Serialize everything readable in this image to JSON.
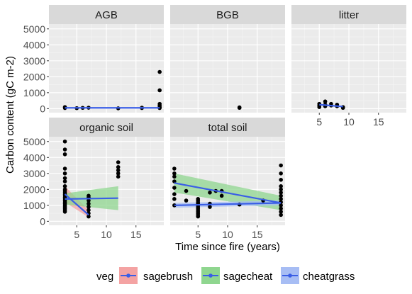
{
  "chart_data": {
    "type": "scatter",
    "xlabel": "Time since fire (years)",
    "ylabel": "Carbon content (gC m-2)",
    "xlim": [
      0.3,
      19.7
    ],
    "ylim": [
      -250,
      5300
    ],
    "x_ticks": [
      5,
      10,
      15
    ],
    "y_ticks": [
      0,
      1000,
      2000,
      3000,
      4000,
      5000
    ],
    "grid": true,
    "legend": {
      "title": "veg",
      "position": "bottom",
      "entries": [
        {
          "name": "sagebrush",
          "fill": "#f4a3a3",
          "color": "#e8696b"
        },
        {
          "name": "sagecheat",
          "fill": "#8fd68f",
          "color": "#4cae4c"
        },
        {
          "name": "cheatgrass",
          "fill": "#a7bdf4",
          "color": "#3a5ee6"
        }
      ]
    },
    "colors": {
      "panel_bg": "#ebebeb",
      "strip_bg": "#d9d9d9",
      "point": "#000000",
      "line": "#3a5ee6"
    },
    "panels": [
      {
        "title": "AGB",
        "x_axis": false,
        "y_axis": true,
        "points": [
          [
            3,
            40
          ],
          [
            3,
            100
          ],
          [
            5,
            30
          ],
          [
            6,
            50
          ],
          [
            7,
            60
          ],
          [
            12,
            20
          ],
          [
            16,
            40
          ],
          [
            16,
            60
          ],
          [
            19,
            40
          ],
          [
            19,
            100
          ],
          [
            19,
            200
          ],
          [
            19,
            300
          ],
          [
            19,
            1150
          ],
          [
            19,
            2300
          ]
        ],
        "lines": [
          {
            "veg": "cheatgrass",
            "points": [
              [
                3,
                50
              ],
              [
                19,
                50
              ]
            ],
            "band": [
              [
                3,
                30,
                70
              ],
              [
                19,
                30,
                70
              ]
            ]
          }
        ]
      },
      {
        "title": "BGB",
        "x_axis": false,
        "y_axis": false,
        "points": [
          [
            12,
            50
          ],
          [
            12,
            80
          ]
        ],
        "lines": []
      },
      {
        "title": "litter",
        "x_axis": true,
        "y_axis": false,
        "points": [
          [
            5,
            100
          ],
          [
            5,
            200
          ],
          [
            5,
            300
          ],
          [
            6,
            250
          ],
          [
            6,
            450
          ],
          [
            6,
            150
          ],
          [
            7,
            200
          ],
          [
            7,
            300
          ],
          [
            8,
            150
          ],
          [
            8,
            250
          ],
          [
            9,
            100
          ],
          [
            9,
            50
          ]
        ],
        "lines": [
          {
            "veg": "cheatgrass",
            "points": [
              [
                5,
                250
              ],
              [
                9,
                130
              ]
            ],
            "band": [
              [
                5,
                200,
                300
              ],
              [
                9,
                90,
                170
              ]
            ]
          }
        ]
      },
      {
        "title": "organic soil",
        "x_axis": true,
        "y_axis": true,
        "points": [
          [
            3,
            600
          ],
          [
            3,
            700
          ],
          [
            3,
            800
          ],
          [
            3,
            900
          ],
          [
            3,
            1000
          ],
          [
            3,
            1100
          ],
          [
            3,
            1200
          ],
          [
            3,
            1300
          ],
          [
            3,
            1400
          ],
          [
            3,
            1500
          ],
          [
            3,
            1600
          ],
          [
            3,
            1700
          ],
          [
            3,
            1800
          ],
          [
            3,
            1900
          ],
          [
            3,
            2000
          ],
          [
            3,
            2200
          ],
          [
            3,
            2500
          ],
          [
            3,
            2700
          ],
          [
            3,
            3000
          ],
          [
            3,
            3300
          ],
          [
            3,
            4200
          ],
          [
            3,
            4500
          ],
          [
            3,
            5000
          ],
          [
            7,
            300
          ],
          [
            7,
            500
          ],
          [
            7,
            700
          ],
          [
            7,
            900
          ],
          [
            7,
            1100
          ],
          [
            7,
            1300
          ],
          [
            7,
            1500
          ],
          [
            7,
            1600
          ],
          [
            12,
            2800
          ],
          [
            12,
            3000
          ],
          [
            12,
            3200
          ],
          [
            12,
            3400
          ],
          [
            12,
            3700
          ]
        ],
        "lines": [
          {
            "veg": "sagebrush",
            "points": [
              [
                3,
                1700
              ],
              [
                7,
                400
              ]
            ],
            "band": [
              [
                3,
                1200,
                2200
              ],
              [
                7,
                250,
                700
              ]
            ]
          },
          {
            "veg": "sagecheat",
            "points": [
              [
                3,
                1400
              ],
              [
                12,
                1450
              ]
            ],
            "band": [
              [
                3,
                1050,
                1750
              ],
              [
                12,
                700,
                2200
              ]
            ]
          }
        ]
      },
      {
        "title": "total soil",
        "x_axis": true,
        "y_axis": false,
        "points": [
          [
            1,
            1000
          ],
          [
            1,
            1400
          ],
          [
            1,
            1700
          ],
          [
            1,
            2100
          ],
          [
            1,
            2500
          ],
          [
            1,
            2800
          ],
          [
            1,
            3000
          ],
          [
            1,
            3300
          ],
          [
            3,
            1900
          ],
          [
            3,
            1300
          ],
          [
            5,
            300
          ],
          [
            5,
            400
          ],
          [
            5,
            500
          ],
          [
            5,
            600
          ],
          [
            5,
            700
          ],
          [
            5,
            800
          ],
          [
            5,
            900
          ],
          [
            5,
            1000
          ],
          [
            5,
            1100
          ],
          [
            5,
            1200
          ],
          [
            5,
            1300
          ],
          [
            5,
            1400
          ],
          [
            7,
            900
          ],
          [
            7,
            1100
          ],
          [
            7,
            1800
          ],
          [
            8,
            1900
          ],
          [
            9,
            1600
          ],
          [
            9,
            1900
          ],
          [
            12,
            1050
          ],
          [
            16,
            1300
          ],
          [
            19,
            400
          ],
          [
            19,
            600
          ],
          [
            19,
            800
          ],
          [
            19,
            1000
          ],
          [
            19,
            1200
          ],
          [
            19,
            1400
          ],
          [
            19,
            1600
          ],
          [
            19,
            1800
          ],
          [
            19,
            2000
          ],
          [
            19,
            2200
          ],
          [
            19,
            2600
          ],
          [
            19,
            3000
          ],
          [
            19,
            3500
          ]
        ],
        "lines": [
          {
            "veg": "sagecheat",
            "points": [
              [
                1,
                2400
              ],
              [
                19,
                1150
              ]
            ],
            "band": [
              [
                1,
                1800,
                3000
              ],
              [
                19,
                700,
                1600
              ]
            ]
          },
          {
            "veg": "cheatgrass",
            "points": [
              [
                1,
                1000
              ],
              [
                19,
                1150
              ]
            ],
            "band": [
              [
                1,
                850,
                1150
              ],
              [
                19,
                1000,
                1300
              ]
            ]
          }
        ]
      }
    ]
  }
}
